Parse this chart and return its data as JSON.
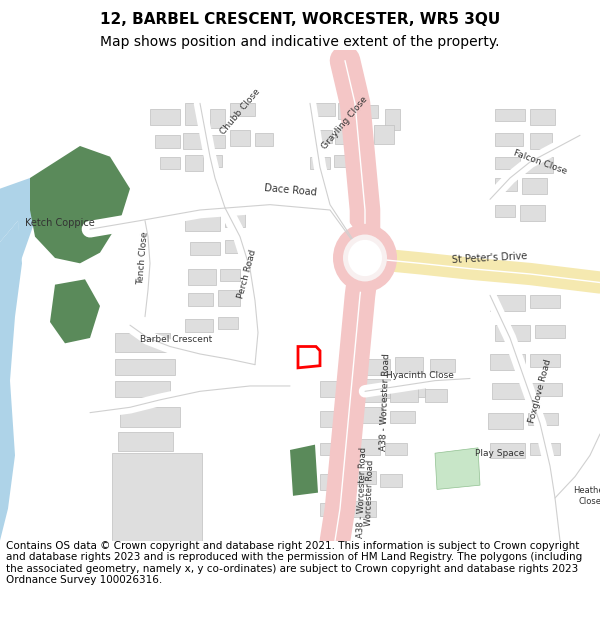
{
  "title_line1": "12, BARBEL CRESCENT, WORCESTER, WR5 3QU",
  "title_line2": "Map shows position and indicative extent of the property.",
  "footer_text": "Contains OS data © Crown copyright and database right 2021. This information is subject to Crown copyright and database rights 2023 and is reproduced with the permission of HM Land Registry. The polygons (including the associated geometry, namely x, y co-ordinates) are subject to Crown copyright and database rights 2023 Ordnance Survey 100026316.",
  "bg_color": "#ffffff",
  "map_bg": "#f5f4f2",
  "road_pink": "#f4c6c6",
  "road_yellow": "#f5e9b0",
  "building_color": "#dedede",
  "building_stroke": "#c0c0c0",
  "green_color": "#5a8a5a",
  "water_color": "#aed3e8",
  "plot_color": "#ff0000",
  "play_space_color": "#c8e6c8",
  "title_fontsize": 11,
  "subtitle_fontsize": 10,
  "footer_fontsize": 7.5
}
